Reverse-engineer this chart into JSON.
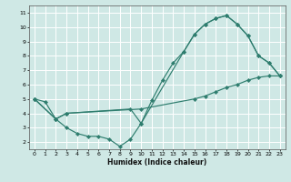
{
  "xlabel": "Humidex (Indice chaleur)",
  "bg_color": "#cfe8e5",
  "grid_color": "#ffffff",
  "line_color": "#2e7d6e",
  "xlim": [
    -0.5,
    23.5
  ],
  "ylim": [
    1.5,
    11.5
  ],
  "xticks": [
    0,
    1,
    2,
    3,
    4,
    5,
    6,
    7,
    8,
    9,
    10,
    11,
    12,
    13,
    14,
    15,
    16,
    17,
    18,
    19,
    20,
    21,
    22,
    23
  ],
  "yticks": [
    2,
    3,
    4,
    5,
    6,
    7,
    8,
    9,
    10,
    11
  ],
  "line1_x": [
    0,
    1,
    2,
    3,
    4,
    5,
    6,
    7,
    8,
    9,
    10,
    11,
    12,
    13,
    14,
    15,
    16,
    17,
    18,
    19,
    20,
    21,
    22,
    23
  ],
  "line1_y": [
    5.0,
    4.8,
    3.6,
    3.0,
    2.6,
    2.4,
    2.4,
    2.2,
    1.7,
    2.2,
    3.3,
    4.9,
    6.3,
    7.5,
    8.3,
    9.5,
    10.2,
    10.6,
    10.8,
    10.2,
    9.4,
    8.0,
    7.5,
    6.6
  ],
  "line2_x": [
    0,
    2,
    3,
    10,
    15,
    16,
    17,
    18,
    19,
    20,
    21,
    22,
    23
  ],
  "line2_y": [
    5.0,
    3.6,
    4.0,
    4.3,
    5.0,
    5.2,
    5.5,
    5.8,
    6.0,
    6.3,
    6.5,
    6.6,
    6.6
  ],
  "line3_x": [
    0,
    2,
    3,
    9,
    10,
    14,
    15,
    16,
    17,
    18,
    19,
    20,
    21,
    22,
    23
  ],
  "line3_y": [
    5.0,
    3.6,
    4.0,
    4.3,
    3.3,
    8.3,
    9.5,
    10.2,
    10.6,
    10.8,
    10.2,
    9.4,
    8.0,
    7.5,
    6.6
  ]
}
